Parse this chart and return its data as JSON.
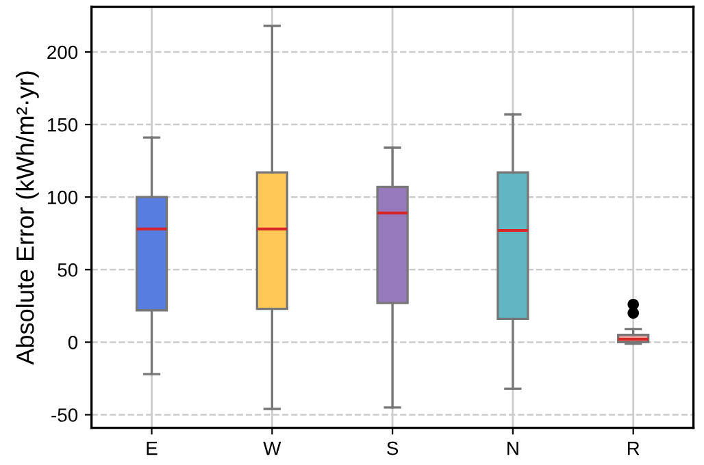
{
  "chart_data": {
    "type": "box",
    "ylabel": "Absolute Error (kWh/m²·yr)",
    "categories": [
      "E",
      "W",
      "S",
      "N",
      "R"
    ],
    "colors": [
      "#587de0",
      "#ffc857",
      "#9779be",
      "#62b5c3",
      "#f4a3a3"
    ],
    "boxes": [
      {
        "low": -22,
        "q1": 22,
        "median": 78,
        "q3": 100,
        "high": 141
      },
      {
        "low": -46,
        "q1": 23,
        "median": 78,
        "q3": 117,
        "high": 218
      },
      {
        "low": -45,
        "q1": 27,
        "median": 89,
        "q3": 107,
        "high": 134
      },
      {
        "low": -32,
        "q1": 16,
        "median": 77,
        "q3": 117,
        "high": 157
      },
      {
        "low": -1,
        "q1": 0,
        "median": 2,
        "q3": 5,
        "high": 9,
        "outliers": [
          20,
          26
        ]
      }
    ],
    "ylim": [
      -59,
      231
    ],
    "yticks": [
      -50,
      0,
      50,
      100,
      150,
      200
    ],
    "grid": true
  }
}
